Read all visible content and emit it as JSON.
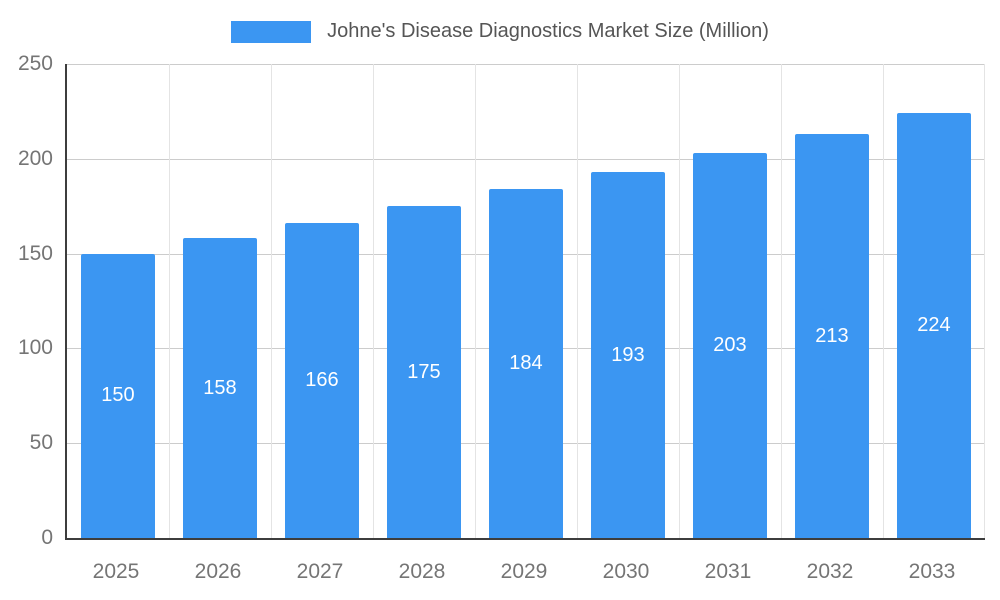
{
  "chart_data": {
    "type": "bar",
    "title": "Johne's Disease Diagnostics Market Size (Million)",
    "categories": [
      "2025",
      "2026",
      "2027",
      "2028",
      "2029",
      "2030",
      "2031",
      "2032",
      "2033"
    ],
    "values": [
      150,
      158,
      166,
      175,
      184,
      193,
      203,
      213,
      224
    ],
    "xlabel": "",
    "ylabel": "",
    "ylim": [
      0,
      250
    ],
    "yticks": [
      0,
      50,
      100,
      150,
      200,
      250
    ],
    "grid": true,
    "legend_position": "top-center",
    "bar_color": "#3B96F2",
    "bar_label_color": "#ffffff",
    "axis_color": "#3d3d3d",
    "grid_color_h": "#cccccc",
    "grid_color_v": "#e4e4e4",
    "tick_label_color": "#757575",
    "title_color": "#555555"
  }
}
